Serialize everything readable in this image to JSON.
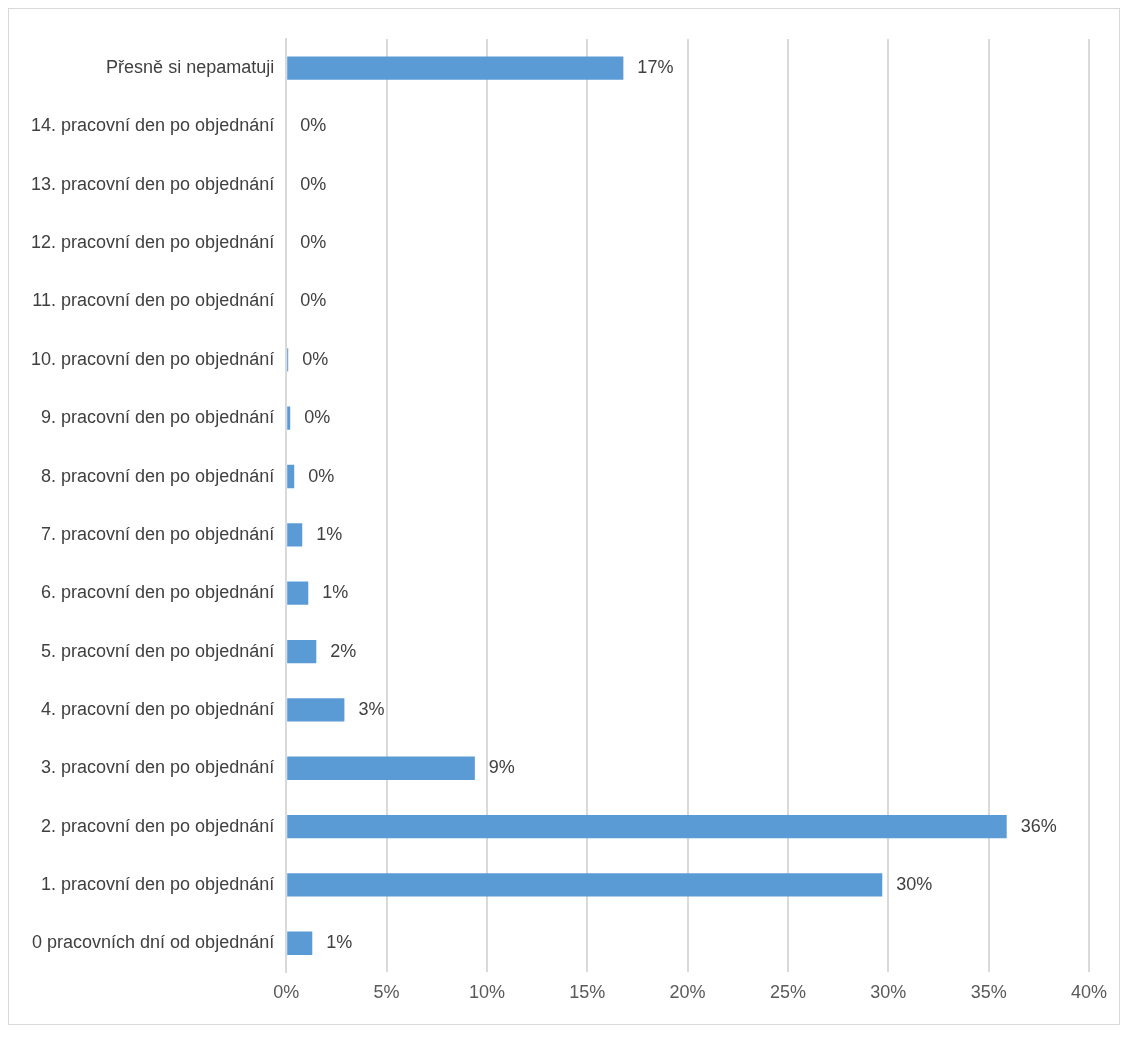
{
  "chart_data": {
    "type": "bar",
    "orientation": "horizontal",
    "categories": [
      "Přesně si nepamatuji",
      "14. pracovní den po objednání",
      "13. pracovní den po objednání",
      "12. pracovní den po objednání",
      "11. pracovní den po objednání",
      "10. pracovní den po objednání",
      "9. pracovní den po objednání",
      "8. pracovní den po objednání",
      "7. pracovní den po objednání",
      "6. pracovní den po objednání",
      "5. pracovní den po objednání",
      "4. pracovní den po objednání",
      "3. pracovní den po objednání",
      "2. pracovní den po objednání",
      "1. pracovní den po objednání",
      "0 pracovních dní od objednání"
    ],
    "values": [
      16.8,
      0,
      0,
      0,
      0,
      0.1,
      0.2,
      0.4,
      0.8,
      1.1,
      1.5,
      2.9,
      9.4,
      35.9,
      29.7,
      1.3
    ],
    "value_labels": [
      "17%",
      "0%",
      "0%",
      "0%",
      "0%",
      "0%",
      "0%",
      "0%",
      "1%",
      "1%",
      "2%",
      "3%",
      "9%",
      "36%",
      "30%",
      "1%"
    ],
    "color": "#5b9bd5",
    "xlim": [
      0,
      40
    ],
    "xticks": [
      {
        "value": 0,
        "label": "0%"
      },
      {
        "value": 5,
        "label": "5%"
      },
      {
        "value": 10,
        "label": "10%"
      },
      {
        "value": 15,
        "label": "15%"
      },
      {
        "value": 20,
        "label": "20%"
      },
      {
        "value": 25,
        "label": "25%"
      },
      {
        "value": 30,
        "label": "30%"
      },
      {
        "value": 35,
        "label": "35%"
      },
      {
        "value": 40,
        "label": "40%"
      }
    ],
    "grid": "x",
    "legend": false
  }
}
